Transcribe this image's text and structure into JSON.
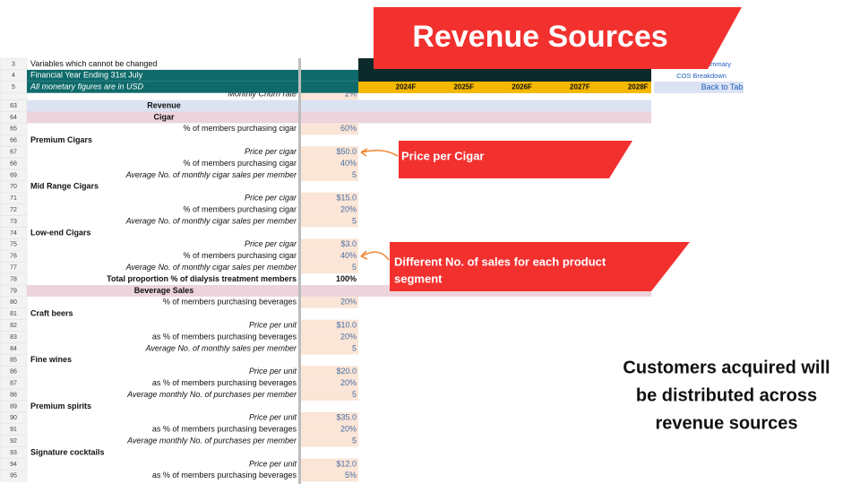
{
  "banner": {
    "title": "Revenue Sources"
  },
  "header": {
    "rows": [
      {
        "num": "3",
        "label": "Variables which cannot be changed",
        "style": "plain"
      },
      {
        "num": "4",
        "label": "Financial Year Ending 31st July",
        "style": "teal"
      },
      {
        "num": "5",
        "label": "All monetary figures are in USD",
        "style": "teal-italic"
      }
    ],
    "years": [
      "2024F",
      "2025F",
      "2026F",
      "2027F",
      "2028F"
    ],
    "links": [
      "Summary",
      "COS Breakdown",
      "Back to Tab"
    ]
  },
  "table": {
    "rows": [
      {
        "label": "Monthly Churn rate",
        "value": "2%",
        "style": "italic"
      },
      {
        "num": "63",
        "label": "Revenue",
        "style": "section"
      },
      {
        "num": "64",
        "label": "Cigar",
        "style": "band"
      },
      {
        "num": "65",
        "label": "% of members purchasing cigar",
        "value": "60%",
        "style": "plain"
      },
      {
        "num": "66",
        "label": "Premium Cigars",
        "style": "group"
      },
      {
        "num": "67",
        "label": "Price per cigar",
        "value": "$50.0",
        "style": "italic"
      },
      {
        "num": "68",
        "label": "% of members purchasing cigar",
        "value": "40%",
        "style": "plain"
      },
      {
        "num": "69",
        "label": "Average No. of monthly cigar sales per member",
        "value": "5",
        "style": "italic"
      },
      {
        "num": "70",
        "label": "Mid Range Cigars",
        "style": "group"
      },
      {
        "num": "71",
        "label": "Price per cigar",
        "value": "$15.0",
        "style": "italic"
      },
      {
        "num": "72",
        "label": "% of members purchasing cigar",
        "value": "20%",
        "style": "plain"
      },
      {
        "num": "73",
        "label": "Average No. of monthly cigar sales per member",
        "value": "5",
        "style": "italic"
      },
      {
        "num": "74",
        "label": "Low-end Cigars",
        "style": "group"
      },
      {
        "num": "75",
        "label": "Price per cigar",
        "value": "$3.0",
        "style": "italic"
      },
      {
        "num": "76",
        "label": "% of members purchasing cigar",
        "value": "40%",
        "style": "plain"
      },
      {
        "num": "77",
        "label": "Average No. of monthly cigar sales per member",
        "value": "5",
        "style": "italic"
      },
      {
        "num": "78",
        "label": "Total proportion % of dialysis treatment members",
        "value": "100%",
        "style": "total"
      },
      {
        "num": "79",
        "label": "Beverage Sales",
        "style": "band"
      },
      {
        "num": "80",
        "label": "% of members purchasing beverages",
        "value": "20%",
        "style": "plain"
      },
      {
        "num": "81",
        "label": "Craft beers",
        "style": "group"
      },
      {
        "num": "82",
        "label": "Price per unit",
        "value": "$10.0",
        "style": "italic"
      },
      {
        "num": "83",
        "label": "as % of members purchasing beverages",
        "value": "20%",
        "style": "plain"
      },
      {
        "num": "84",
        "label": "Average No. of monthly sales per member",
        "value": "5",
        "style": "italic"
      },
      {
        "num": "85",
        "label": "Fine wines",
        "style": "group"
      },
      {
        "num": "86",
        "label": "Price per unit",
        "value": "$20.0",
        "style": "italic"
      },
      {
        "num": "87",
        "label": "as % of members purchasing beverages",
        "value": "20%",
        "style": "plain"
      },
      {
        "num": "88",
        "label": "Average monthly No. of purchases per member",
        "value": "5",
        "style": "italic"
      },
      {
        "num": "89",
        "label": "Premium spirits",
        "style": "group"
      },
      {
        "num": "90",
        "label": "Price per unit",
        "value": "$35.0",
        "style": "italic"
      },
      {
        "num": "91",
        "label": "as % of members purchasing beverages",
        "value": "20%",
        "style": "plain"
      },
      {
        "num": "92",
        "label": "Average monthly No. of purchases per member",
        "value": "5",
        "style": "italic"
      },
      {
        "num": "93",
        "label": "Signature cocktails",
        "style": "group"
      },
      {
        "num": "94",
        "label": "Price per unit",
        "value": "$12.0",
        "style": "italic"
      },
      {
        "num": "95",
        "label": "as % of members purchasing beverages",
        "value": "5%",
        "style": "plain"
      }
    ]
  },
  "callouts": [
    {
      "lines": [
        "Price per Cigar"
      ]
    },
    {
      "lines": [
        "Different No. of sales for each product",
        "segment"
      ]
    }
  ],
  "note": {
    "lines": [
      "Customers acquired will",
      "be distributed across",
      "revenue sources"
    ]
  }
}
